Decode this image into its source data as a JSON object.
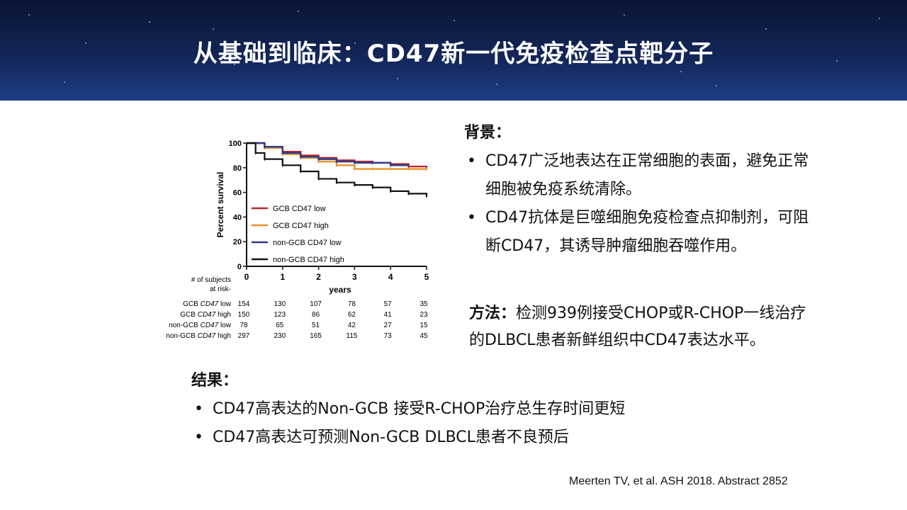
{
  "slide": {
    "title": "从基础到临床：CD47新一代免疫检查点靶分子",
    "background": {
      "heading": "背景：",
      "bullets": [
        "CD47广泛地表达在正常细胞的表面，避免正常细胞被免疫系统清除。",
        "CD47抗体是巨噬细胞免疫检查点抑制剂，可阻断CD47，其诱导肿瘤细胞吞噬作用。"
      ]
    },
    "method": {
      "heading": "方法：",
      "text": "检测939例接受CHOP或R-CHOP一线治疗的DLBCL患者新鲜组织中CD47表达水平。"
    },
    "results": {
      "heading": "结果：",
      "bullets": [
        "CD47高表达的Non-GCB 接受R-CHOP治疗总生存时间更短",
        "CD47高表达可预测Non-GCB DLBCL患者不良预后"
      ]
    },
    "citation": "Meerten TV, et al. ASH 2018. Abstract 2852"
  },
  "chart_data": {
    "type": "line",
    "title": "",
    "xlabel": "years",
    "ylabel": "Percent survival",
    "xlim": [
      0,
      5
    ],
    "ylim": [
      0,
      100
    ],
    "x_ticks": [
      "0",
      "1",
      "2",
      "3",
      "4",
      "5"
    ],
    "y_ticks": [
      "0",
      "20",
      "40",
      "60",
      "80",
      "100"
    ],
    "legend_position": "bottom-left inside plot",
    "series": [
      {
        "name": "GCB CD47 low",
        "color": "#c0272d",
        "x": [
          0,
          0.5,
          1,
          1.5,
          2,
          2.5,
          3,
          3.5,
          4,
          4.5,
          5
        ],
        "y": [
          100,
          97,
          93,
          90,
          88,
          86,
          85,
          84,
          83,
          81,
          80
        ]
      },
      {
        "name": "GCB CD47 high",
        "color": "#e8912b",
        "x": [
          0,
          0.5,
          1,
          1.5,
          2,
          2.5,
          3,
          3.5,
          4,
          4.5,
          5
        ],
        "y": [
          100,
          96,
          91,
          88,
          85,
          82,
          79,
          79,
          79,
          79,
          79
        ]
      },
      {
        "name": "non-GCB CD47 low",
        "color": "#2b3a8f",
        "x": [
          0,
          0.5,
          1,
          1.5,
          2,
          2.5,
          3,
          3.5,
          4,
          4.5
        ],
        "y": [
          100,
          97,
          92,
          89,
          87,
          85,
          84,
          84,
          82,
          82
        ]
      },
      {
        "name": "non-GCB CD47 high",
        "color": "#111111",
        "x": [
          0,
          0.25,
          0.5,
          1,
          1.5,
          2,
          2.5,
          3,
          3.5,
          4,
          4.5,
          5
        ],
        "y": [
          100,
          92,
          87,
          82,
          77,
          71,
          68,
          66,
          64,
          61,
          59,
          57
        ]
      }
    ],
    "risk_table": {
      "header": "# of subjects\nat risk-",
      "header_line1": "# of subjects",
      "header_line2": "at risk-",
      "rows": [
        {
          "label_prefix": "GCB",
          "label_italic": "CD47",
          "label_suffix": "low",
          "values": [
            "154",
            "130",
            "107",
            "78",
            "57",
            "35"
          ]
        },
        {
          "label_prefix": "GCB",
          "label_italic": "CD47",
          "label_suffix": "high",
          "values": [
            "150",
            "123",
            "86",
            "62",
            "41",
            "23"
          ]
        },
        {
          "label_prefix": "non-GCB",
          "label_italic": "CD47",
          "label_suffix": "low",
          "values": [
            "78",
            "65",
            "51",
            "42",
            "27",
            "15"
          ]
        },
        {
          "label_prefix": "non-GCB",
          "label_italic": "CD47",
          "label_suffix": "high",
          "values": [
            "297",
            "230",
            "165",
            "115",
            "73",
            "45"
          ]
        }
      ]
    }
  }
}
